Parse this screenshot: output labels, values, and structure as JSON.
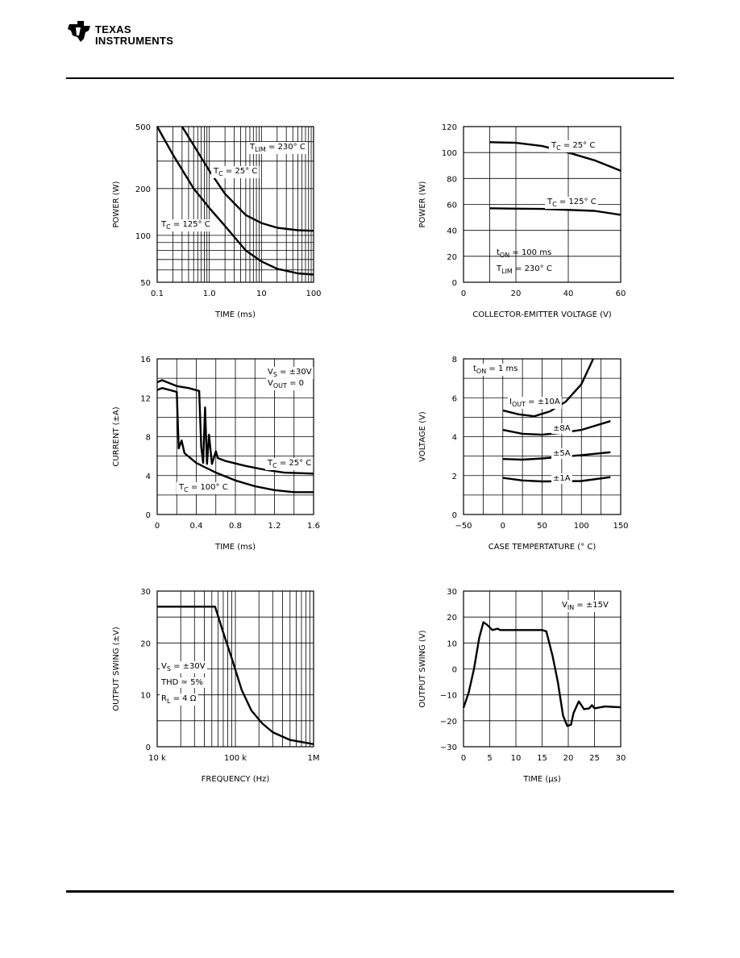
{
  "header": {
    "logo_line1": "Texas",
    "logo_line2": "Instruments"
  },
  "chart_data": [
    {
      "type": "line",
      "xscale": "log",
      "yscale": "log",
      "xlim": [
        0.1,
        100
      ],
      "ylim": [
        50,
        500
      ],
      "xticks": [
        "0.1",
        "1.0",
        "10",
        "100"
      ],
      "xtick_values": [
        0.1,
        1,
        10,
        100
      ],
      "yticks": [
        "50",
        "100",
        "200",
        "500"
      ],
      "ytick_values": [
        50,
        100,
        200,
        500
      ],
      "xlabel": "TIME (ms)",
      "ylabel": "POWER (W)",
      "annotations": [
        {
          "main": "T",
          "sub": "LIM",
          "rest": " = 230° C"
        },
        {
          "main": "T",
          "sub": "C",
          "rest": " = 25° C"
        },
        {
          "main": "T",
          "sub": "C",
          "rest": " = 125° C"
        }
      ],
      "series": [
        {
          "name": "TC = 25° C",
          "x": [
            0.3,
            0.5,
            1,
            2,
            5,
            10,
            20,
            50,
            100
          ],
          "y": [
            500,
            380,
            260,
            185,
            135,
            120,
            112,
            108,
            107
          ]
        },
        {
          "name": "TC = 125° C",
          "x": [
            0.1,
            0.2,
            0.5,
            1,
            2,
            5,
            10,
            20,
            50,
            100
          ],
          "y": [
            500,
            330,
            200,
            150,
            115,
            80,
            68,
            61,
            57,
            56
          ]
        }
      ]
    },
    {
      "type": "line",
      "xscale": "linear",
      "yscale": "linear",
      "xlim": [
        0,
        60
      ],
      "ylim": [
        0,
        120
      ],
      "xticks": [
        "0",
        "20",
        "40",
        "60"
      ],
      "xtick_values": [
        0,
        20,
        40,
        60
      ],
      "yticks": [
        "0",
        "20",
        "40",
        "60",
        "80",
        "100",
        "120"
      ],
      "ytick_values": [
        0,
        20,
        40,
        60,
        80,
        100,
        120
      ],
      "xlabel": "COLLECTOR-EMITTER VOLTAGE (V)",
      "ylabel": "POWER (W)",
      "annotations": [
        {
          "main": "T",
          "sub": "C",
          "rest": " = 25° C"
        },
        {
          "main": "T",
          "sub": "C",
          "rest": " = 125° C"
        },
        {
          "main": "t",
          "sub": "ON",
          "rest": " = 100 ms"
        },
        {
          "main": "T",
          "sub": "LIM",
          "rest": " = 230° C"
        }
      ],
      "series": [
        {
          "name": "TC = 25° C",
          "x": [
            10,
            20,
            30,
            40,
            50,
            60
          ],
          "y": [
            108,
            107.5,
            105,
            100,
            94,
            86
          ]
        },
        {
          "name": "TC = 125° C",
          "x": [
            10,
            30,
            50,
            60
          ],
          "y": [
            57,
            56.5,
            55,
            52
          ]
        }
      ]
    },
    {
      "type": "line",
      "xscale": "linear",
      "yscale": "linear",
      "xlim": [
        0,
        1.6
      ],
      "ylim": [
        0,
        16
      ],
      "xticks": [
        "0",
        "0.4",
        "0.8",
        "1.2",
        "1.6"
      ],
      "xtick_values": [
        0,
        0.4,
        0.8,
        1.2,
        1.6
      ],
      "yticks": [
        "0",
        "4",
        "8",
        "12",
        "16"
      ],
      "ytick_values": [
        0,
        4,
        8,
        12,
        16
      ],
      "xlabel": "TIME (ms)",
      "ylabel": "CURRENT (±A)",
      "annotations": [
        {
          "main": "V",
          "sub": "S",
          "rest": " = ±30V"
        },
        {
          "main": "V",
          "sub": "OUT",
          "rest": " = 0"
        },
        {
          "main": "T",
          "sub": "C",
          "rest": " = 25° C"
        },
        {
          "main": "T",
          "sub": "C",
          "rest": " = 100° C"
        }
      ],
      "series": [
        {
          "name": "TC = 25° C",
          "x": [
            0,
            0.05,
            0.2,
            0.32,
            0.43,
            0.45,
            0.47,
            0.49,
            0.51,
            0.53,
            0.56,
            0.6,
            0.62,
            0.7,
            0.9,
            1.1,
            1.3,
            1.6
          ],
          "y": [
            13.6,
            13.8,
            13.2,
            13,
            12.7,
            7,
            5.3,
            11,
            5.2,
            8.2,
            5.2,
            6.5,
            5.8,
            5.5,
            5,
            4.6,
            4.3,
            4.2
          ]
        },
        {
          "name": "TC = 100° C",
          "x": [
            0,
            0.05,
            0.2,
            0.22,
            0.25,
            0.28,
            0.4,
            0.6,
            0.8,
            1,
            1.2,
            1.4,
            1.6
          ],
          "y": [
            12.8,
            13,
            12.6,
            6.8,
            7.6,
            6.3,
            5.3,
            4.3,
            3.5,
            2.9,
            2.5,
            2.3,
            2.3
          ]
        }
      ]
    },
    {
      "type": "line",
      "xscale": "linear",
      "yscale": "linear",
      "xlim": [
        -50,
        150
      ],
      "ylim": [
        0,
        8
      ],
      "xticks": [
        "−50",
        "0",
        "50",
        "100",
        "150"
      ],
      "xtick_values": [
        -50,
        0,
        50,
        100,
        150
      ],
      "yticks": [
        "0",
        "2",
        "4",
        "6",
        "8"
      ],
      "ytick_values": [
        0,
        2,
        4,
        6,
        8
      ],
      "xlabel": "CASE TEMPERTATURE (° C)",
      "ylabel": "VOLTAGE (V)",
      "annotations": [
        {
          "main": "t",
          "sub": "ON",
          "rest": " = 1 ms"
        },
        {
          "main": "I",
          "sub": "OUT",
          "rest": " = ±10A"
        },
        {
          "main": "±8A",
          "sub": "",
          "rest": ""
        },
        {
          "main": "±5A",
          "sub": "",
          "rest": ""
        },
        {
          "main": "±1A",
          "sub": "",
          "rest": ""
        }
      ],
      "series": [
        {
          "name": "±10A",
          "x": [
            0,
            20,
            40,
            60,
            80,
            100,
            115
          ],
          "y": [
            5.35,
            5.15,
            5.05,
            5.3,
            5.8,
            6.7,
            8
          ]
        },
        {
          "name": "±8A",
          "x": [
            0,
            25,
            50,
            75,
            100,
            137
          ],
          "y": [
            4.35,
            4.15,
            4.1,
            4.2,
            4.35,
            4.8
          ]
        },
        {
          "name": "±5A",
          "x": [
            0,
            25,
            50,
            100,
            137
          ],
          "y": [
            2.85,
            2.82,
            2.88,
            3.05,
            3.2
          ]
        },
        {
          "name": "±1A",
          "x": [
            0,
            25,
            50,
            100,
            137
          ],
          "y": [
            1.88,
            1.75,
            1.7,
            1.72,
            1.92
          ]
        }
      ]
    },
    {
      "type": "line",
      "xscale": "log",
      "yscale": "linear",
      "xlim": [
        10000,
        1000000
      ],
      "ylim": [
        0,
        30
      ],
      "xticks": [
        "10 k",
        "100 k",
        "1M"
      ],
      "xtick_values": [
        10000,
        100000,
        1000000
      ],
      "yticks": [
        "0",
        "10",
        "20",
        "30"
      ],
      "ytick_values": [
        0,
        10,
        20,
        30
      ],
      "xlabel": "FREQUENCY (Hz)",
      "ylabel": "OUTPUT SWING (±V)",
      "annotations": [
        {
          "main": "V",
          "sub": "S",
          "rest": " = ±30V"
        },
        {
          "main": "THD ≃ 5%",
          "sub": "",
          "rest": ""
        },
        {
          "main": "R",
          "sub": "L",
          "rest": " = 4 Ω"
        }
      ],
      "series": [
        {
          "name": "Output swing",
          "x": [
            10000,
            55000,
            70000,
            90000,
            120000,
            160000,
            220000,
            300000,
            500000,
            1000000
          ],
          "y": [
            27,
            27,
            22,
            17,
            11,
            7,
            4.5,
            2.8,
            1.3,
            0.5
          ]
        }
      ]
    },
    {
      "type": "line",
      "xscale": "linear",
      "yscale": "linear",
      "xlim": [
        0,
        30
      ],
      "ylim": [
        -30,
        30
      ],
      "xticks": [
        "0",
        "5",
        "10",
        "15",
        "20",
        "25",
        "30"
      ],
      "xtick_values": [
        0,
        5,
        10,
        15,
        20,
        25,
        30
      ],
      "yticks": [
        "−30",
        "−20",
        "−10",
        "0",
        "10",
        "20",
        "30"
      ],
      "ytick_values": [
        -30,
        -20,
        -10,
        0,
        10,
        20,
        30
      ],
      "xlabel": "TIME (μs)",
      "ylabel": "OUTPUT SWING (V)",
      "annotations": [
        {
          "main": "V",
          "sub": "IN",
          "rest": " = ±15V"
        }
      ],
      "series": [
        {
          "name": "Output swing",
          "x": [
            0,
            1,
            2,
            3,
            3.8,
            4.5,
            5.5,
            6.5,
            7,
            10,
            15,
            15.8,
            17,
            18,
            19,
            19.8,
            20.5,
            21,
            22,
            23,
            24,
            24.5,
            25,
            27,
            30
          ],
          "y": [
            -15,
            -9,
            0,
            12,
            18,
            17,
            15,
            15.5,
            15,
            15,
            15,
            14.5,
            5,
            -5,
            -18,
            -22,
            -21.5,
            -17,
            -12.5,
            -15.5,
            -15.2,
            -14,
            -15.2,
            -14.5,
            -14.8
          ]
        }
      ]
    }
  ]
}
